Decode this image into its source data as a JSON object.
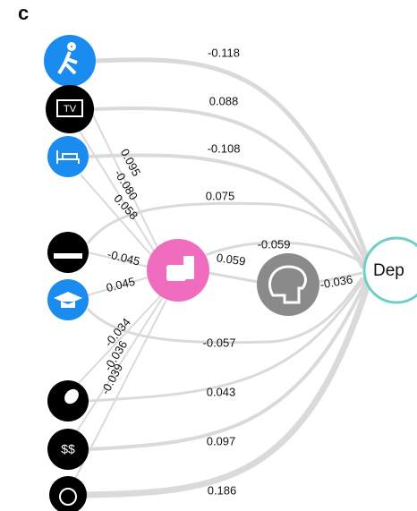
{
  "panel": "c",
  "nodes": {
    "tv": "TV",
    "money": "$$",
    "dep": "Dep"
  },
  "direct_edges": [
    "-0.118",
    "0.088",
    "-0.108",
    "0.075",
    "-0.057",
    "0.043",
    "0.097",
    "0.186"
  ],
  "mediator_edges": [
    "0.095",
    "-0.080",
    "0.058",
    "-0.045",
    "0.045",
    "-0.034",
    "-0.036",
    "-0.039"
  ],
  "food_to_dep": "-0.059",
  "food_to_brain": "0.059",
  "brain_to_dep": "-0.036"
}
